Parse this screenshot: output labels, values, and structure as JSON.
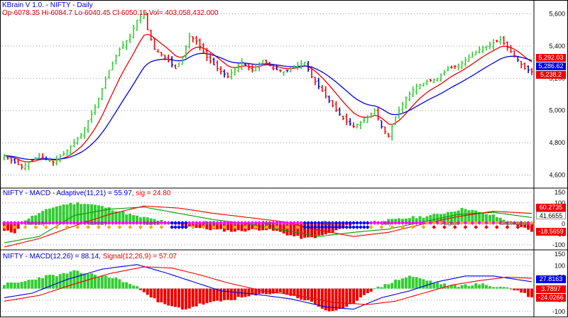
{
  "header": {
    "app_title": "KBrain V 1.0.  - NIFTY - Daily",
    "ohlc": "Op-6078.35  Hi-6084.7  Lo-6040.45  Cl-6050.15  Vol= 403,058,432.000"
  },
  "colors": {
    "up": "#33cc33",
    "down": "#ee0000",
    "ma_fast": "#ee0000",
    "ma_slow": "#0000dd",
    "grid": "#9a9a9a",
    "dot_magenta": "#ff00ff",
    "dot_blue": "#0000ff",
    "dot_orange": "#ffa500"
  },
  "panes": {
    "price": {
      "tags": [
        {
          "value": "5,292.03",
          "color": "#ee0000"
        },
        {
          "value": "5,286.62",
          "color": "#0000dd"
        },
        {
          "value": "5,238.2",
          "color": "#ee0000"
        }
      ]
    },
    "adaptive": {
      "title_prefix": "NIFTY - MACD - Adaptive(11,21) = 55.97, ",
      "title_sig": "sig = 24.80",
      "months": [
        "January",
        "February",
        "March",
        "April",
        "May",
        "June",
        "July",
        "August",
        "September"
      ],
      "tags": [
        {
          "value": "60.2735",
          "color": "#ee0000"
        },
        {
          "value": "41.6655",
          "color": "#ffffff"
        },
        {
          "value": "-18.5659",
          "color": "#ee0000"
        }
      ]
    },
    "std": {
      "title_prefix": "NIFTY - MACD(12,26) = 88.14, ",
      "title_sig": "Signal(12,26,9) = 57.07",
      "tags": [
        {
          "value": "27.8163",
          "color": "#0000dd"
        },
        {
          "value": "3.7897",
          "color": "#ee0000"
        },
        {
          "value": "-24.0266",
          "color": "#ee0000"
        }
      ]
    }
  },
  "chart_data": [
    {
      "type": "candlestick",
      "title": "NIFTY - Daily",
      "ylim": [
        4550,
        5650
      ],
      "yticks": [
        4600,
        4800,
        5000,
        5200,
        5400,
        5600
      ],
      "ytick_labels": [
        "4,600",
        "4,800",
        "5,000",
        "5,200",
        "5,400",
        "5,600"
      ],
      "price_path": [
        [
          0,
          4720
        ],
        [
          5,
          4650
        ],
        [
          10,
          4720
        ],
        [
          14,
          4680
        ],
        [
          18,
          4750
        ],
        [
          22,
          4850
        ],
        [
          26,
          5020
        ],
        [
          30,
          5250
        ],
        [
          33,
          5380
        ],
        [
          36,
          5460
        ],
        [
          38,
          5560
        ],
        [
          40,
          5600
        ],
        [
          41,
          5500
        ],
        [
          43,
          5380
        ],
        [
          46,
          5330
        ],
        [
          49,
          5260
        ],
        [
          51,
          5330
        ],
        [
          53,
          5460
        ],
        [
          55,
          5430
        ],
        [
          58,
          5330
        ],
        [
          61,
          5260
        ],
        [
          64,
          5210
        ],
        [
          68,
          5300
        ],
        [
          71,
          5250
        ],
        [
          74,
          5310
        ],
        [
          77,
          5260
        ],
        [
          80,
          5240
        ],
        [
          83,
          5270
        ],
        [
          86,
          5300
        ],
        [
          88,
          5210
        ],
        [
          91,
          5120
        ],
        [
          94,
          5030
        ],
        [
          97,
          4950
        ],
        [
          100,
          4900
        ],
        [
          103,
          4940
        ],
        [
          106,
          5000
        ],
        [
          108,
          4900
        ],
        [
          110,
          4840
        ],
        [
          112,
          4960
        ],
        [
          115,
          5080
        ],
        [
          118,
          5150
        ],
        [
          121,
          5180
        ],
        [
          124,
          5200
        ],
        [
          127,
          5260
        ],
        [
          130,
          5280
        ],
        [
          133,
          5330
        ],
        [
          136,
          5380
        ],
        [
          139,
          5410
        ],
        [
          142,
          5440
        ],
        [
          144,
          5390
        ],
        [
          146,
          5340
        ],
        [
          149,
          5260
        ],
        [
          151,
          5240
        ]
      ],
      "series": [
        {
          "name": "MA fast",
          "style": "line"
        },
        {
          "name": "MA slow",
          "style": "line"
        }
      ]
    },
    {
      "type": "bar",
      "title": "NIFTY - MACD - Adaptive(11,21)",
      "ylim": [
        -110,
        160
      ],
      "yticks": [
        150,
        100,
        50,
        0,
        -50,
        -100
      ],
      "ytick_labels": [
        "150",
        "100",
        "50",
        "0",
        "-50",
        "-100"
      ],
      "hist_path": [
        [
          0,
          -35
        ],
        [
          3,
          -40
        ],
        [
          6,
          20
        ],
        [
          10,
          50
        ],
        [
          14,
          80
        ],
        [
          18,
          95
        ],
        [
          22,
          100
        ],
        [
          26,
          90
        ],
        [
          30,
          75
        ],
        [
          34,
          55
        ],
        [
          38,
          35
        ],
        [
          42,
          25
        ],
        [
          46,
          10
        ],
        [
          50,
          -5
        ],
        [
          54,
          -15
        ],
        [
          58,
          -25
        ],
        [
          62,
          -30
        ],
        [
          66,
          -35
        ],
        [
          70,
          -30
        ],
        [
          74,
          -25
        ],
        [
          78,
          -35
        ],
        [
          82,
          -55
        ],
        [
          86,
          -70
        ],
        [
          90,
          -60
        ],
        [
          94,
          -40
        ],
        [
          98,
          -10
        ],
        [
          100,
          5
        ],
        [
          104,
          10
        ],
        [
          108,
          15
        ],
        [
          112,
          20
        ],
        [
          116,
          30
        ],
        [
          120,
          35
        ],
        [
          124,
          45
        ],
        [
          128,
          60
        ],
        [
          132,
          75
        ],
        [
          136,
          55
        ],
        [
          140,
          40
        ],
        [
          144,
          15
        ],
        [
          147,
          -5
        ],
        [
          151,
          -40
        ]
      ],
      "series": [
        {
          "name": "macd",
          "path": [
            [
              0,
              -90
            ],
            [
              10,
              -60
            ],
            [
              20,
              40
            ],
            [
              30,
              70
            ],
            [
              40,
              80
            ],
            [
              50,
              50
            ],
            [
              60,
              20
            ],
            [
              70,
              0
            ],
            [
              80,
              -30
            ],
            [
              90,
              -60
            ],
            [
              100,
              -40
            ],
            [
              110,
              -25
            ],
            [
              120,
              10
            ],
            [
              130,
              45
            ],
            [
              140,
              55
            ],
            [
              151,
              30
            ]
          ]
        },
        {
          "name": "sig",
          "path": [
            [
              0,
              -110
            ],
            [
              10,
              -70
            ],
            [
              20,
              -10
            ],
            [
              30,
              45
            ],
            [
              40,
              85
            ],
            [
              50,
              75
            ],
            [
              60,
              50
            ],
            [
              70,
              30
            ],
            [
              80,
              10
            ],
            [
              90,
              -30
            ],
            [
              100,
              -60
            ],
            [
              110,
              -40
            ],
            [
              120,
              0
            ],
            [
              130,
              35
            ],
            [
              140,
              60
            ],
            [
              151,
              50
            ]
          ]
        }
      ]
    },
    {
      "type": "bar",
      "title": "NIFTY - MACD(12,26)",
      "ylim": [
        -110,
        160
      ],
      "yticks": [
        150,
        100,
        50,
        0,
        -50,
        -100
      ],
      "ytick_labels": [
        "150",
        "100",
        "50",
        "0",
        "-50",
        "-100"
      ],
      "hist_path": [
        [
          0,
          20
        ],
        [
          4,
          25
        ],
        [
          8,
          40
        ],
        [
          12,
          55
        ],
        [
          16,
          60
        ],
        [
          20,
          75
        ],
        [
          24,
          65
        ],
        [
          28,
          55
        ],
        [
          32,
          45
        ],
        [
          36,
          20
        ],
        [
          40,
          -10
        ],
        [
          44,
          -60
        ],
        [
          48,
          -80
        ],
        [
          52,
          -90
        ],
        [
          56,
          -70
        ],
        [
          60,
          -60
        ],
        [
          64,
          -50
        ],
        [
          68,
          -40
        ],
        [
          72,
          -30
        ],
        [
          76,
          -20
        ],
        [
          80,
          -20
        ],
        [
          84,
          -40
        ],
        [
          88,
          -60
        ],
        [
          92,
          -95
        ],
        [
          95,
          -100
        ],
        [
          98,
          -85
        ],
        [
          101,
          -50
        ],
        [
          104,
          -15
        ],
        [
          108,
          10
        ],
        [
          112,
          35
        ],
        [
          116,
          55
        ],
        [
          120,
          40
        ],
        [
          124,
          25
        ],
        [
          128,
          10
        ],
        [
          132,
          15
        ],
        [
          136,
          20
        ],
        [
          140,
          10
        ],
        [
          144,
          5
        ],
        [
          148,
          -15
        ],
        [
          151,
          -40
        ]
      ],
      "series": [
        {
          "name": "MACD",
          "path": [
            [
              0,
              -40
            ],
            [
              8,
              -20
            ],
            [
              18,
              40
            ],
            [
              28,
              85
            ],
            [
              38,
              105
            ],
            [
              46,
              70
            ],
            [
              54,
              30
            ],
            [
              62,
              -10
            ],
            [
              72,
              -25
            ],
            [
              82,
              -45
            ],
            [
              92,
              -80
            ],
            [
              100,
              -90
            ],
            [
              108,
              -40
            ],
            [
              116,
              -10
            ],
            [
              124,
              30
            ],
            [
              132,
              55
            ],
            [
              140,
              55
            ],
            [
              151,
              30
            ]
          ]
        },
        {
          "name": "Signal",
          "path": [
            [
              0,
              -55
            ],
            [
              10,
              -30
            ],
            [
              20,
              20
            ],
            [
              30,
              65
            ],
            [
              40,
              95
            ],
            [
              48,
              90
            ],
            [
              56,
              60
            ],
            [
              64,
              25
            ],
            [
              74,
              -10
            ],
            [
              84,
              -30
            ],
            [
              94,
              -60
            ],
            [
              104,
              -70
            ],
            [
              112,
              -55
            ],
            [
              120,
              -20
            ],
            [
              128,
              15
            ],
            [
              136,
              35
            ],
            [
              144,
              50
            ],
            [
              151,
              45
            ]
          ]
        }
      ]
    }
  ]
}
